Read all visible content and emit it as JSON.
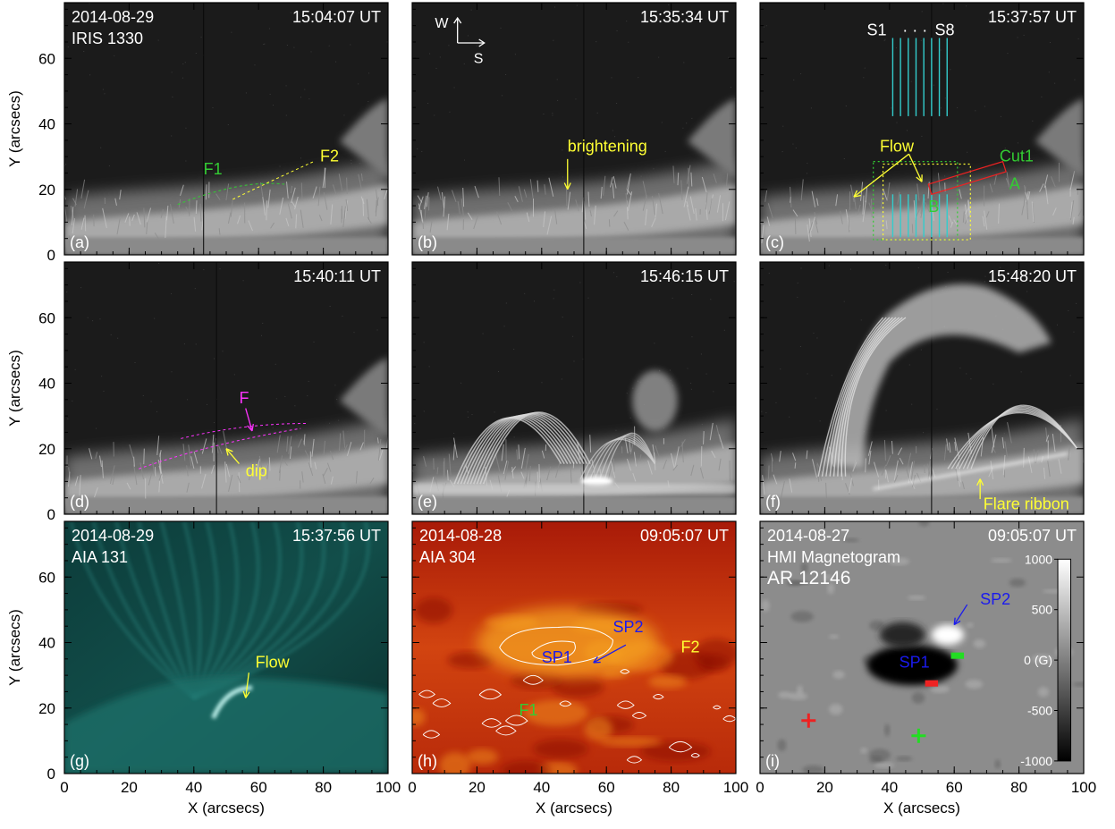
{
  "axes": {
    "xlabel": "X (arcsecs)",
    "ylabel": "Y (arcsecs)",
    "xticks": [
      "0",
      "20",
      "40",
      "60",
      "80",
      "100"
    ],
    "yticks": [
      "0",
      "20",
      "40",
      "60"
    ],
    "xlim": [
      0,
      100
    ],
    "ylim": [
      0,
      77
    ]
  },
  "panels": [
    {
      "id": "a",
      "label": "(a)",
      "top_left": "2014-08-29",
      "instrument": "IRIS 1330",
      "time": "15:04:07 UT",
      "colormap": "gray",
      "annotations": [
        {
          "text": "F1",
          "color": "#33cc33"
        },
        {
          "text": "F2",
          "color": "#ffff33"
        }
      ]
    },
    {
      "id": "b",
      "label": "(b)",
      "top_left": "",
      "instrument": "",
      "time": "15:35:34 UT",
      "colormap": "gray",
      "annotations": [
        {
          "text": "W",
          "color": "#ffffff"
        },
        {
          "text": "S",
          "color": "#ffffff"
        },
        {
          "text": "brightening",
          "color": "#ffff33"
        }
      ]
    },
    {
      "id": "c",
      "label": "(c)",
      "top_left": "",
      "instrument": "",
      "time": "15:37:57 UT",
      "colormap": "gray",
      "annotations": [
        {
          "text": "S1",
          "color": "#ffffff"
        },
        {
          "text": "· · ·",
          "color": "#ffffff"
        },
        {
          "text": "S8",
          "color": "#ffffff"
        },
        {
          "text": "Flow",
          "color": "#ffff33"
        },
        {
          "text": "Cut1",
          "color": "#33cc33"
        },
        {
          "text": "A",
          "color": "#33cc33"
        },
        {
          "text": "B",
          "color": "#33cc33"
        }
      ]
    },
    {
      "id": "d",
      "label": "(d)",
      "top_left": "",
      "instrument": "",
      "time": "15:40:11 UT",
      "colormap": "gray",
      "annotations": [
        {
          "text": "F",
          "color": "#ff33ff"
        },
        {
          "text": "dip",
          "color": "#ffff33"
        }
      ]
    },
    {
      "id": "e",
      "label": "(e)",
      "top_left": "",
      "instrument": "",
      "time": "15:46:15 UT",
      "colormap": "gray",
      "annotations": []
    },
    {
      "id": "f",
      "label": "(f)",
      "top_left": "",
      "instrument": "",
      "time": "15:48:20 UT",
      "colormap": "gray",
      "annotations": [
        {
          "text": "Flare ribbon",
          "color": "#ffff33"
        }
      ]
    },
    {
      "id": "g",
      "label": "(g)",
      "top_left": "2014-08-29",
      "instrument": "AIA 131",
      "time": "15:37:56 UT",
      "colormap": "teal",
      "annotations": [
        {
          "text": "Flow",
          "color": "#ffff33"
        }
      ]
    },
    {
      "id": "h",
      "label": "(h)",
      "top_left": "2014-08-28",
      "instrument": "AIA 304",
      "time": "09:05:07 UT",
      "colormap": "red",
      "annotations": [
        {
          "text": "SP2",
          "color": "#1a1aee"
        },
        {
          "text": "SP1",
          "color": "#1a1aee"
        },
        {
          "text": "F2",
          "color": "#ffff33"
        },
        {
          "text": "F1",
          "color": "#33cc33"
        }
      ]
    },
    {
      "id": "i",
      "label": "(i)",
      "top_left": "2014-08-27",
      "instrument": "HMI Magnetogram",
      "region": "AR 12146",
      "time": "09:05:07 UT",
      "colormap": "gray",
      "annotations": [
        {
          "text": "SP2",
          "color": "#1a1aee"
        },
        {
          "text": "SP1",
          "color": "#1a1aee"
        }
      ]
    }
  ],
  "colorbar": {
    "labels": [
      "1000",
      "500",
      "0 (G)",
      "-500",
      "-1000"
    ],
    "range": [
      -1000,
      1000
    ]
  }
}
